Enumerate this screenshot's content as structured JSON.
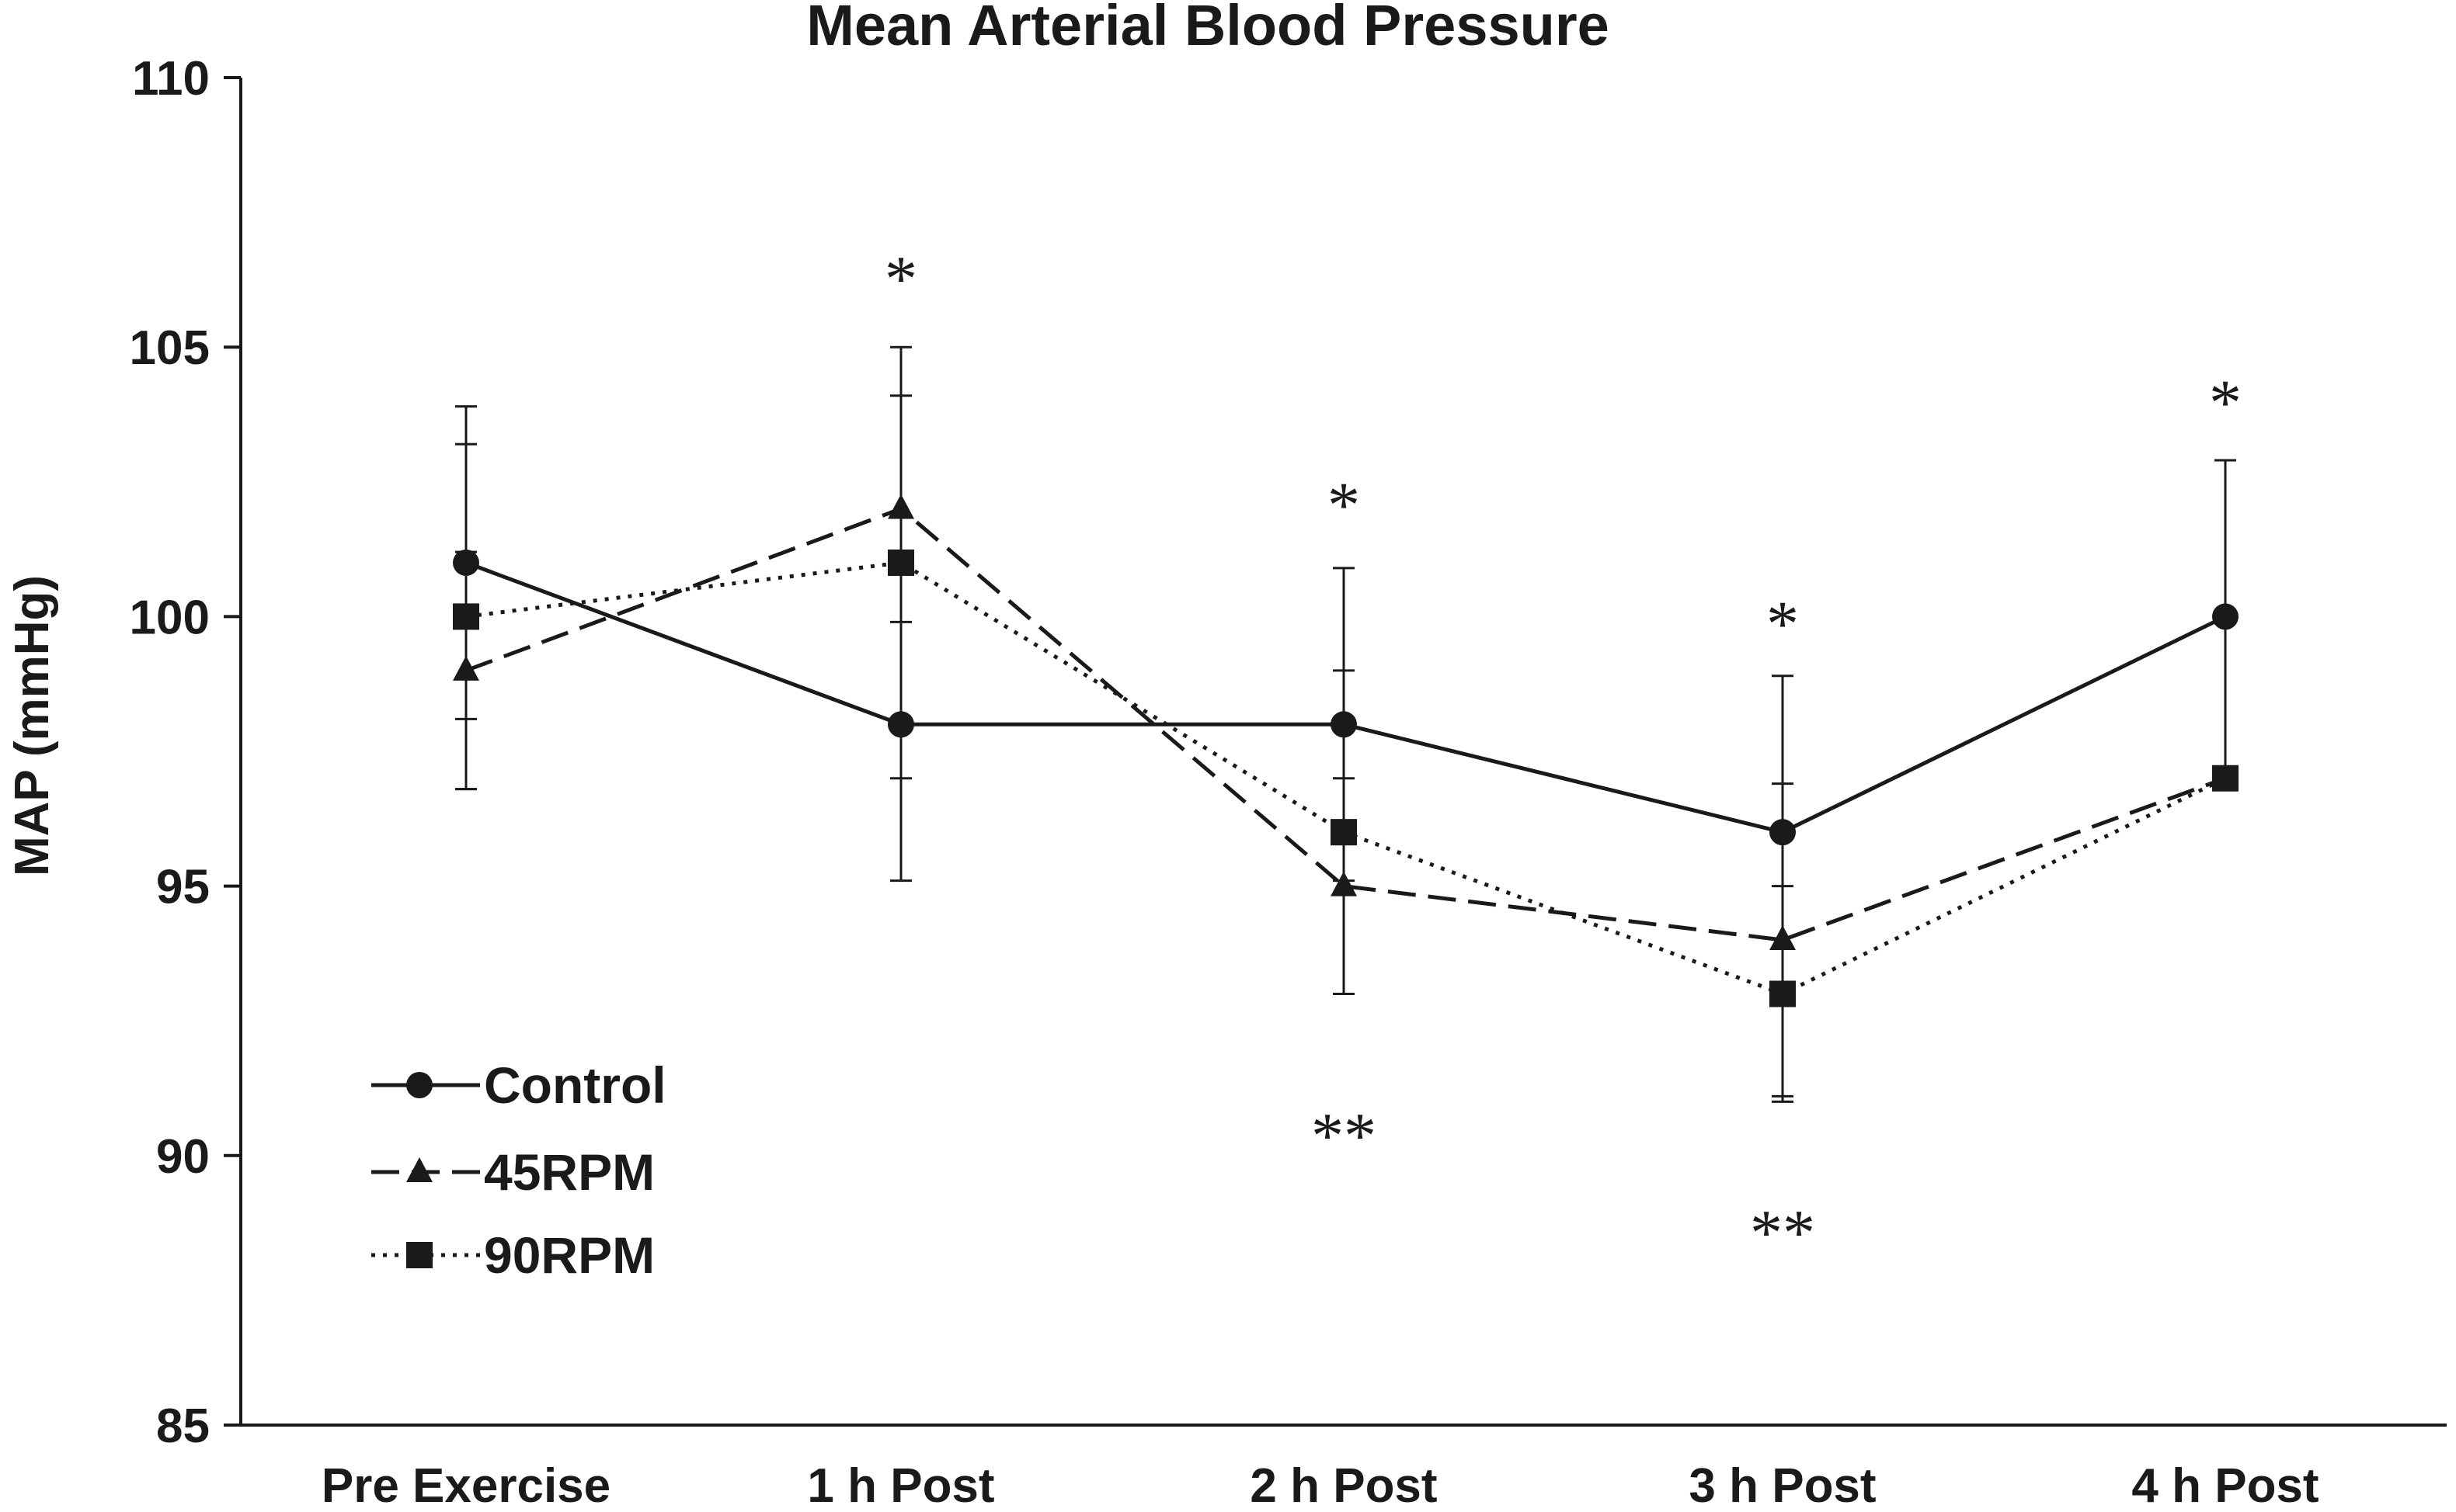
{
  "chart_data": {
    "type": "line",
    "title": "Mean Arterial Blood Pressure",
    "xlabel": "",
    "ylabel": "MAP (mmHg)",
    "ylim": [
      85,
      110
    ],
    "yticks": [
      85,
      90,
      95,
      100,
      105,
      110
    ],
    "categories": [
      "Pre Exercise",
      "1 h Post",
      "2 h Post",
      "3 h Post",
      "4 h Post"
    ],
    "series": [
      {
        "name": "Control",
        "marker": "circle",
        "line": "solid",
        "values": [
          101,
          98,
          98,
          96,
          100
        ],
        "error": [
          2.9,
          2.9,
          2.9,
          2.9,
          2.9
        ]
      },
      {
        "name": "45RPM",
        "marker": "triangle",
        "line": "dashed",
        "values": [
          99,
          102,
          95,
          94,
          97
        ],
        "error": [
          2.2,
          2.1,
          2.0,
          2.9,
          0
        ]
      },
      {
        "name": "90RPM",
        "marker": "square",
        "line": "dotted",
        "values": [
          100,
          101,
          96,
          93,
          97
        ],
        "error": [
          3.2,
          4.0,
          3.0,
          2.0,
          0
        ]
      }
    ],
    "annotations": [
      {
        "category": "1 h Post",
        "y": 106.3,
        "text": "*"
      },
      {
        "category": "2 h Post",
        "y": 102.1,
        "text": "*"
      },
      {
        "category": "2 h Post",
        "y": 90.4,
        "text": "**"
      },
      {
        "category": "3 h Post",
        "y": 99.9,
        "text": "*"
      },
      {
        "category": "3 h Post",
        "y": 88.6,
        "text": "**"
      },
      {
        "category": "4 h Post",
        "y": 104.0,
        "text": "*"
      }
    ],
    "legend_position": "bottom-left",
    "colors": {
      "line": "#1a1a1a",
      "background": "#ffffff"
    }
  }
}
